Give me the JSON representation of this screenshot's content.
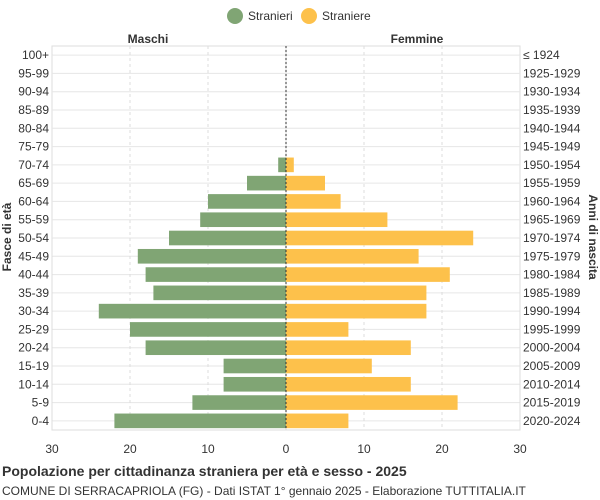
{
  "chart_data": {
    "type": "bar",
    "orientation": "horizontal",
    "title": "Popolazione per cittadinanza straniera per età e sesso - 2025",
    "subtitle": "COMUNE DI SERRACAPRIOLA (FG) - Dati ISTAT 1° gennaio 2025 - Elaborazione TUTTITALIA.IT",
    "left_header": "Maschi",
    "right_header": "Femmine",
    "ylabel": "Fasce di età",
    "ylabel_right": "Anni di nascita",
    "xlim": [
      -30,
      30
    ],
    "x_ticks": [
      -30,
      -20,
      -10,
      0,
      10,
      20,
      30
    ],
    "x_tick_labels": [
      "30",
      "20",
      "10",
      "0",
      "10",
      "20",
      "30"
    ],
    "grid": true,
    "legend_position": "top-center",
    "categories": [
      "100+",
      "95-99",
      "90-94",
      "85-89",
      "80-84",
      "75-79",
      "70-74",
      "65-69",
      "60-64",
      "55-59",
      "50-54",
      "45-49",
      "40-44",
      "35-39",
      "30-34",
      "25-29",
      "20-24",
      "15-19",
      "10-14",
      "5-9",
      "0-4"
    ],
    "birth_years": [
      "≤ 1924",
      "1925-1929",
      "1930-1934",
      "1935-1939",
      "1940-1944",
      "1945-1949",
      "1950-1954",
      "1955-1959",
      "1960-1964",
      "1965-1969",
      "1970-1974",
      "1975-1979",
      "1980-1984",
      "1985-1989",
      "1990-1994",
      "1995-1999",
      "2000-2004",
      "2005-2009",
      "2010-2014",
      "2015-2019",
      "2020-2024"
    ],
    "series": [
      {
        "name": "Stranieri",
        "color": "#80a574",
        "values": [
          0,
          0,
          0,
          0,
          0,
          0,
          1,
          5,
          10,
          11,
          15,
          19,
          18,
          17,
          24,
          20,
          18,
          8,
          8,
          12,
          22
        ]
      },
      {
        "name": "Straniere",
        "color": "#fdc14b",
        "values": [
          0,
          0,
          0,
          0,
          0,
          0,
          1,
          5,
          7,
          13,
          24,
          17,
          21,
          18,
          18,
          8,
          16,
          11,
          16,
          22,
          8
        ]
      }
    ]
  }
}
